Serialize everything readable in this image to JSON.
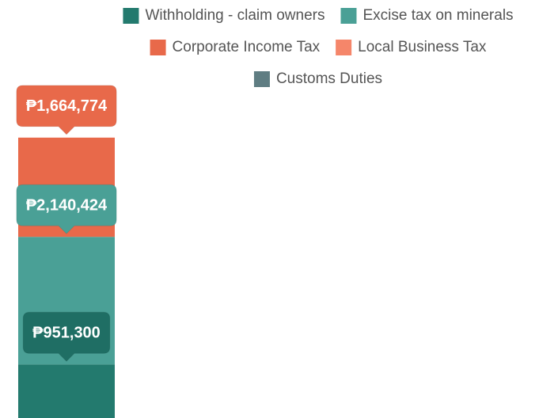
{
  "chart_data": {
    "type": "stacked_bar",
    "categories": [
      null
    ],
    "series": [
      {
        "name": "Withholding - claim owners",
        "color": "#237a6e",
        "values": [
          951300
        ],
        "value_labels": [
          "₱951,300"
        ]
      },
      {
        "name": "Excise tax on minerals",
        "color": "#4aa096",
        "values": [
          2140424
        ],
        "value_labels": [
          "₱2,140,424"
        ]
      },
      {
        "name": "Corporate Income Tax",
        "color": "#e8694a",
        "values": [
          1664774
        ],
        "value_labels": [
          "₱1,664,774"
        ]
      },
      {
        "name": "Local Business Tax",
        "color": "#f5866a",
        "values": [
          null
        ],
        "value_labels": [
          null
        ]
      },
      {
        "name": "Customs Duties",
        "color": "#5f7d82",
        "values": [
          null
        ],
        "value_labels": [
          null
        ]
      }
    ]
  }
}
